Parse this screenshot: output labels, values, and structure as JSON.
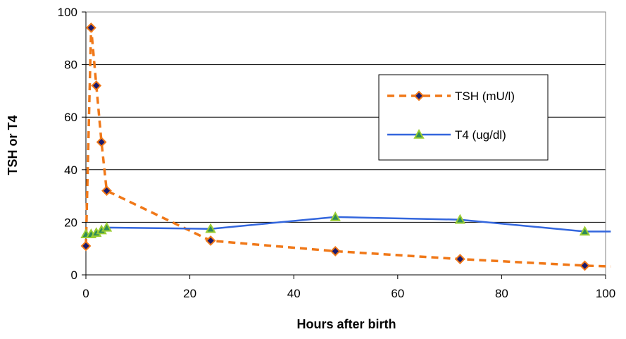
{
  "chart_data": {
    "type": "line",
    "title": "",
    "xlabel": "Hours after birth",
    "ylabel": "TSH or T4",
    "xlim": [
      0,
      100
    ],
    "ylim": [
      0,
      100
    ],
    "x_ticks": [
      "0",
      "20",
      "40",
      "60",
      "80",
      "100"
    ],
    "y_ticks": [
      "0",
      "20",
      "40",
      "60",
      "80",
      "100"
    ],
    "grid": "horizontal",
    "legend_position": "right",
    "series": [
      {
        "name": "TSH (mU/l)",
        "style": "dashed",
        "marker": "diamond",
        "line_color": "#f07818",
        "marker_color": "#1a1a6e",
        "marker_edge": "#f07818",
        "x": [
          0,
          1,
          2,
          3,
          4,
          24,
          48,
          72,
          96,
          101
        ],
        "y": [
          11,
          94,
          72,
          50.5,
          32,
          13,
          9,
          6,
          3.5,
          3.2
        ]
      },
      {
        "name": "T4 (ug/dl)",
        "style": "solid",
        "marker": "triangle",
        "line_color": "#3366dd",
        "marker_color": "#2e8b57",
        "marker_edge": "#9acd32",
        "x": [
          0,
          1,
          2,
          3,
          4,
          24,
          48,
          72,
          96,
          101
        ],
        "y": [
          15.5,
          15.5,
          16,
          17,
          18,
          17.5,
          22,
          21,
          16.5,
          16.5
        ]
      }
    ]
  }
}
